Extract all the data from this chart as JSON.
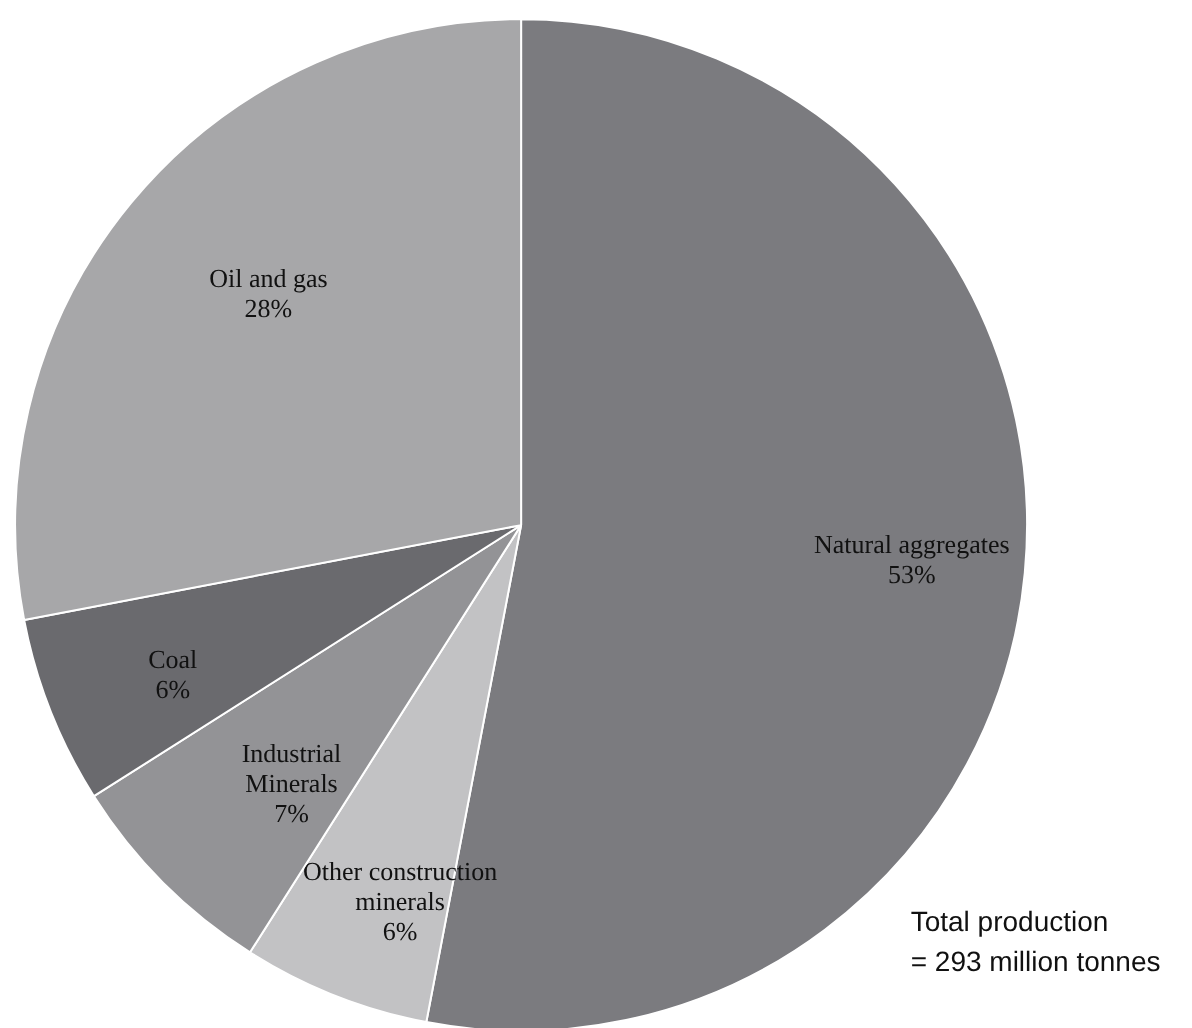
{
  "chart_data": {
    "type": "pie",
    "categories": [
      "Natural aggregates",
      "Other construction minerals",
      "Industrial Minerals",
      "Coal",
      "Oil and gas"
    ],
    "values": [
      53,
      6,
      7,
      6,
      28
    ],
    "colors": [
      "#7b7b7f",
      "#c2c2c4",
      "#939396",
      "#6a6a6e",
      "#a7a7a9"
    ],
    "value_labels": [
      "53%",
      "6%",
      "7%",
      "6%",
      "28%"
    ],
    "annotations": [
      "Total production\n= 293 million tonnes"
    ]
  }
}
